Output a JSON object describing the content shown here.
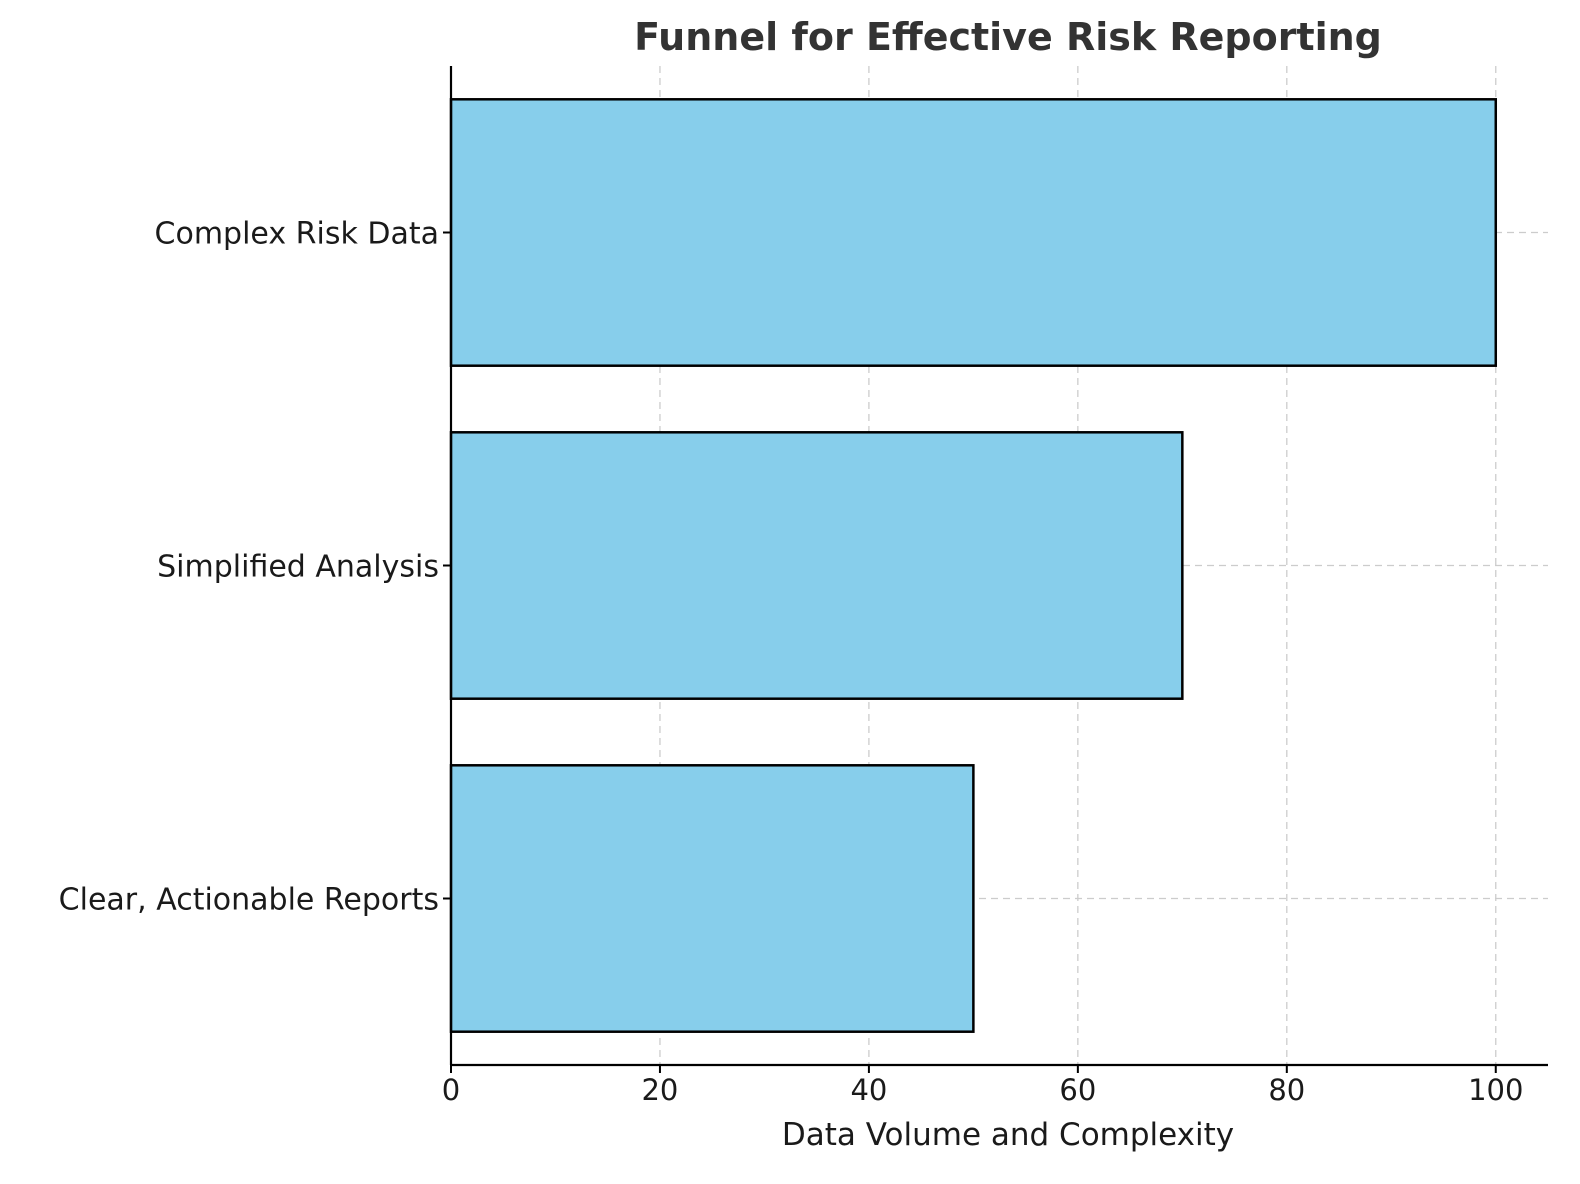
{
  "chart_data": {
    "type": "bar",
    "orientation": "horizontal",
    "title": "Funnel for Effective Risk Reporting",
    "xlabel": "Data Volume and Complexity",
    "ylabel": "",
    "categories": [
      "Complex Risk Data",
      "Simplified Analysis",
      "Clear, Actionable Reports"
    ],
    "values": [
      100,
      70,
      50
    ],
    "xlim": [
      0,
      105
    ],
    "xticks": [
      0,
      20,
      40,
      60,
      80,
      100
    ],
    "xtick_labels": [
      "0",
      "20",
      "40",
      "60",
      "80",
      "100"
    ],
    "grid": true,
    "grid_style": "dashed",
    "bar_color": "#87ceeb",
    "bar_edge_color": "#000000",
    "title_color": "#333333",
    "text_color": "#1a1a1a"
  }
}
